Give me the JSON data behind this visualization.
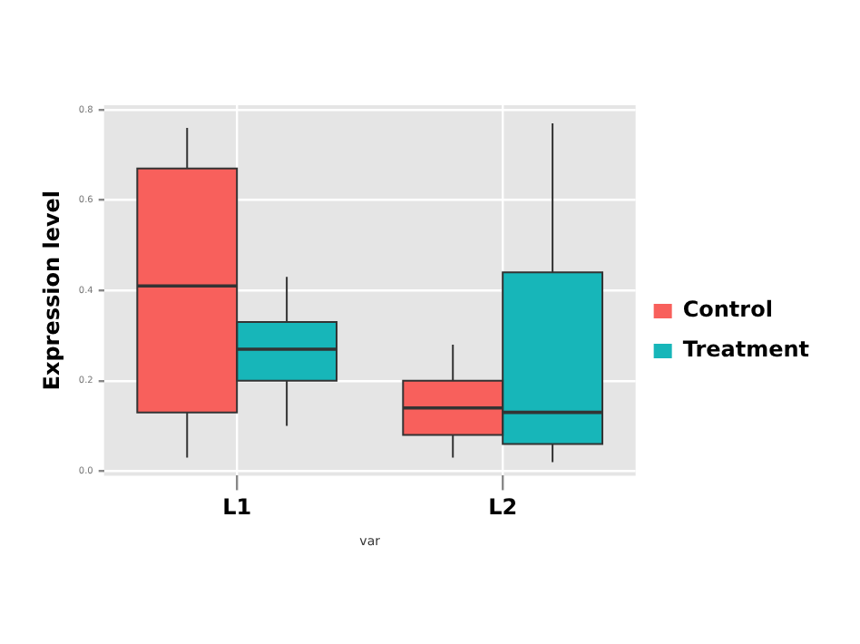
{
  "chart_data": {
    "type": "box",
    "xlabel": "var",
    "ylabel": "Expression level",
    "categories": [
      "L1",
      "L2"
    ],
    "ylim": [
      -0.01,
      0.81
    ],
    "yticks": [
      {
        "value": 0,
        "label": "0.0"
      },
      {
        "value": 0.2,
        "label": "0.2"
      },
      {
        "value": 0.4,
        "label": "0.4"
      },
      {
        "value": 0.6,
        "label": "0.6"
      },
      {
        "value": 0.8,
        "label": "0.8"
      }
    ],
    "grid": true,
    "legend": "right",
    "series": [
      {
        "name": "Control",
        "color": "#f8605c",
        "boxes": [
          {
            "low": 0.03,
            "q1": 0.13,
            "median": 0.41,
            "q3": 0.67,
            "high": 0.76
          },
          {
            "low": 0.03,
            "q1": 0.08,
            "median": 0.14,
            "q3": 0.2,
            "high": 0.28
          }
        ]
      },
      {
        "name": "Treatment",
        "color": "#17b6b9",
        "boxes": [
          {
            "low": 0.1,
            "q1": 0.2,
            "median": 0.27,
            "q3": 0.33,
            "high": 0.43
          },
          {
            "low": 0.02,
            "q1": 0.06,
            "median": 0.13,
            "q3": 0.44,
            "high": 0.77
          }
        ]
      }
    ]
  }
}
